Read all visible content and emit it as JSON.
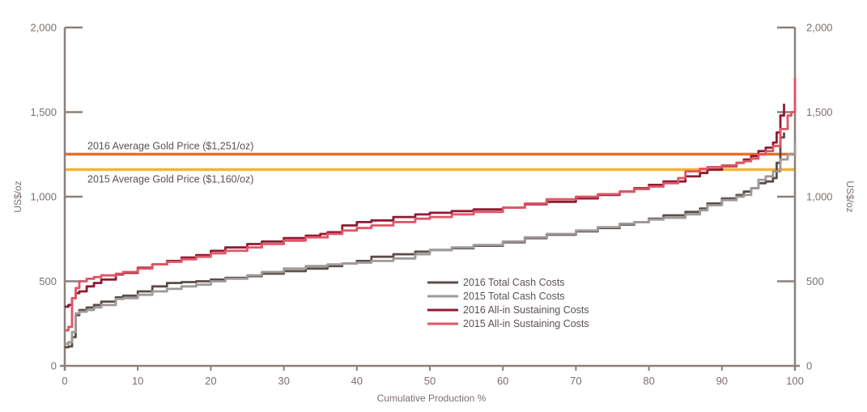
{
  "chart_data": {
    "type": "line",
    "title": "",
    "xlabel": "Cumulative Production %",
    "ylabel_left": "US$/oz",
    "ylabel_right": "US$/oz",
    "xlim": [
      0,
      100
    ],
    "ylim": [
      0,
      2000
    ],
    "x_ticks": [
      0,
      10,
      20,
      30,
      40,
      50,
      60,
      70,
      80,
      90,
      100
    ],
    "x_tick_labels": [
      "0",
      "10",
      "20",
      "30",
      "40",
      "50",
      "60",
      "70",
      "80",
      "90",
      "100"
    ],
    "y_ticks": [
      0,
      500,
      1000,
      1500,
      2000
    ],
    "y_tick_labels": [
      "0",
      "500",
      "1,000",
      "1,500",
      "2,000"
    ],
    "grid": false,
    "legend_position": "center-right",
    "reference_lines": [
      {
        "label": "2016 Average Gold Price ($1,251/oz)",
        "value": 1251,
        "color": "#e8702a"
      },
      {
        "label": "2015 Average Gold Price ($1,160/oz)",
        "value": 1160,
        "color": "#f2b43a"
      }
    ],
    "series": [
      {
        "name": "2016 Total Cash Costs",
        "color": "#5b4d4b",
        "x": [
          0,
          0.5,
          1,
          1.5,
          2,
          3,
          4,
          5,
          7,
          8,
          10,
          12,
          14,
          16,
          18,
          20,
          22,
          25,
          27,
          30,
          33,
          36,
          38,
          40,
          42,
          45,
          48,
          50,
          53,
          56,
          60,
          63,
          66,
          70,
          73,
          76,
          78,
          80,
          82,
          85,
          87,
          88,
          90,
          92,
          93,
          94,
          95,
          96,
          97,
          97.5,
          98,
          98.5
        ],
        "values": [
          110,
          115,
          170,
          300,
          330,
          345,
          360,
          380,
          405,
          415,
          440,
          470,
          490,
          495,
          500,
          510,
          520,
          530,
          545,
          560,
          575,
          590,
          605,
          620,
          645,
          660,
          675,
          685,
          695,
          710,
          730,
          755,
          775,
          795,
          815,
          835,
          850,
          870,
          890,
          910,
          930,
          960,
          990,
          1010,
          1030,
          1050,
          1080,
          1090,
          1110,
          1200,
          1350,
          1380
        ]
      },
      {
        "name": "2015 Total Cash Costs",
        "color": "#9d9a99",
        "x": [
          0,
          0.5,
          1,
          1.5,
          2,
          3,
          4,
          5,
          7,
          8,
          10,
          12,
          14,
          16,
          18,
          20,
          22,
          25,
          27,
          30,
          33,
          36,
          38,
          40,
          42,
          45,
          48,
          50,
          53,
          56,
          60,
          63,
          66,
          70,
          73,
          76,
          78,
          80,
          82,
          85,
          87,
          88,
          90,
          92,
          93,
          94,
          95,
          96,
          97,
          98,
          99,
          100
        ],
        "values": [
          130,
          140,
          200,
          310,
          320,
          330,
          345,
          360,
          395,
          400,
          420,
          440,
          455,
          470,
          480,
          500,
          515,
          535,
          555,
          575,
          590,
          600,
          605,
          610,
          620,
          635,
          660,
          685,
          700,
          715,
          735,
          760,
          780,
          800,
          820,
          840,
          850,
          865,
          875,
          895,
          920,
          950,
          980,
          1000,
          1010,
          1050,
          1100,
          1120,
          1150,
          1220,
          1250,
          1320
        ]
      },
      {
        "name": "2016 All-in Sustaining Costs",
        "color": "#8e1b34",
        "x": [
          0,
          0.5,
          1,
          1.5,
          2,
          3,
          4,
          5,
          7,
          8,
          10,
          12,
          14,
          16,
          18,
          20,
          22,
          25,
          27,
          30,
          33,
          35,
          36,
          38,
          40,
          42,
          45,
          48,
          50,
          53,
          56,
          60,
          63,
          66,
          70,
          73,
          76,
          78,
          80,
          82,
          85,
          87,
          88,
          90,
          92,
          93,
          94,
          95,
          96,
          97,
          97.5,
          98,
          98.5
        ],
        "values": [
          350,
          360,
          400,
          430,
          440,
          470,
          490,
          510,
          540,
          550,
          580,
          600,
          620,
          640,
          655,
          680,
          700,
          720,
          735,
          755,
          770,
          780,
          790,
          830,
          850,
          860,
          880,
          895,
          905,
          915,
          925,
          935,
          955,
          970,
          990,
          1010,
          1030,
          1050,
          1070,
          1090,
          1120,
          1140,
          1160,
          1180,
          1200,
          1220,
          1240,
          1270,
          1290,
          1320,
          1380,
          1480,
          1550
        ]
      },
      {
        "name": "2015 All-in Sustaining Costs",
        "color": "#e05565",
        "x": [
          0,
          0.5,
          1,
          1.5,
          2,
          3,
          4,
          5,
          7,
          8,
          10,
          12,
          14,
          16,
          18,
          20,
          22,
          25,
          27,
          30,
          33,
          36,
          38,
          40,
          42,
          45,
          48,
          50,
          53,
          56,
          60,
          63,
          66,
          70,
          73,
          76,
          78,
          80,
          82,
          84,
          85,
          87,
          88,
          90,
          92,
          93,
          94,
          95,
          96,
          97,
          98,
          99,
          99.5,
          100
        ],
        "values": [
          210,
          230,
          400,
          460,
          500,
          515,
          525,
          535,
          545,
          555,
          575,
          600,
          615,
          630,
          645,
          665,
          680,
          700,
          720,
          740,
          760,
          780,
          800,
          815,
          830,
          850,
          870,
          880,
          895,
          910,
          935,
          960,
          985,
          1000,
          1015,
          1030,
          1045,
          1060,
          1080,
          1110,
          1150,
          1165,
          1175,
          1185,
          1200,
          1210,
          1225,
          1250,
          1270,
          1300,
          1400,
          1480,
          1500,
          1700
        ]
      }
    ]
  }
}
